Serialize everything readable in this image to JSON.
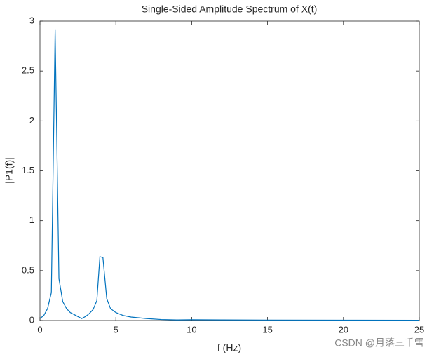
{
  "chart_data": {
    "type": "line",
    "title": "Single-Sided Amplitude Spectrum of X(t)",
    "xlabel": "f (Hz)",
    "ylabel": "|P1(f)|",
    "watermark": "CSDN @月落三千雪",
    "x": [
      0,
      0.25,
      0.5,
      0.75,
      1,
      1.25,
      1.5,
      1.75,
      2,
      2.25,
      2.5,
      2.75,
      3,
      3.25,
      3.5,
      3.75,
      3.95,
      4.15,
      4.4,
      4.65,
      5,
      5.5,
      6,
      7,
      8,
      9,
      10,
      12,
      15,
      20,
      25
    ],
    "series": [
      {
        "name": "P1",
        "color": "#0072bd",
        "values": [
          0.02,
          0.05,
          0.12,
          0.28,
          2.91,
          0.42,
          0.19,
          0.12,
          0.08,
          0.06,
          0.04,
          0.02,
          0.04,
          0.07,
          0.11,
          0.2,
          0.64,
          0.63,
          0.22,
          0.12,
          0.08,
          0.05,
          0.035,
          0.02,
          0.01,
          0.006,
          0.008,
          0.006,
          0.005,
          0.004,
          0.003
        ]
      }
    ],
    "xlim": [
      0,
      25
    ],
    "xticks": [
      0,
      5,
      10,
      15,
      20,
      25
    ],
    "ylim": [
      0,
      3
    ],
    "yticks": [
      0,
      0.5,
      1,
      1.5,
      2,
      2.5,
      3
    ]
  }
}
